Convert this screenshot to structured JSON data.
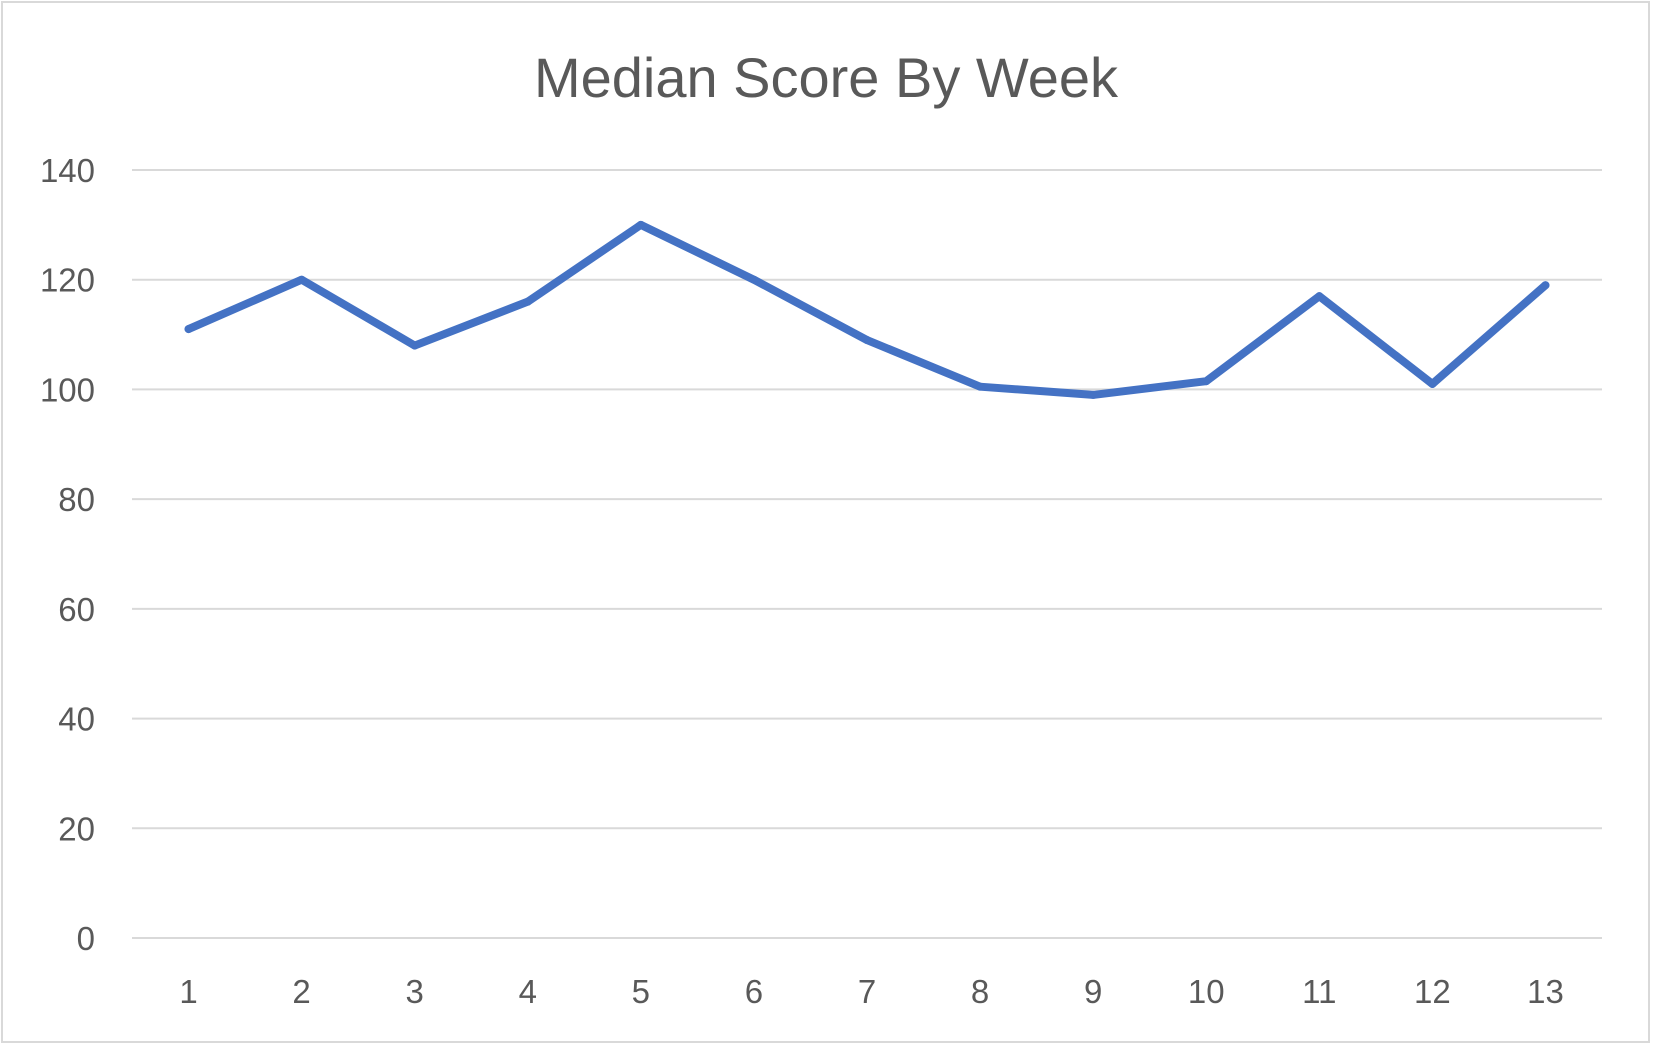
{
  "chart_data": {
    "type": "line",
    "title": "Median Score By Week",
    "xlabel": "",
    "ylabel": "",
    "categories": [
      "1",
      "2",
      "3",
      "4",
      "5",
      "6",
      "7",
      "8",
      "9",
      "10",
      "11",
      "12",
      "13"
    ],
    "series": [
      {
        "values": [
          111,
          120,
          108,
          116,
          130,
          120,
          109,
          100.5,
          99,
          101.5,
          117,
          101,
          119
        ]
      }
    ],
    "ylim": [
      0,
      140
    ],
    "yticks": [
      "0",
      "20",
      "40",
      "60",
      "80",
      "100",
      "120",
      "140"
    ],
    "grid": true,
    "legend": "none",
    "colors": {
      "series": "#4472c4",
      "grid": "#d9d9d9",
      "text": "#595959",
      "border": "#d9d9d9"
    }
  }
}
